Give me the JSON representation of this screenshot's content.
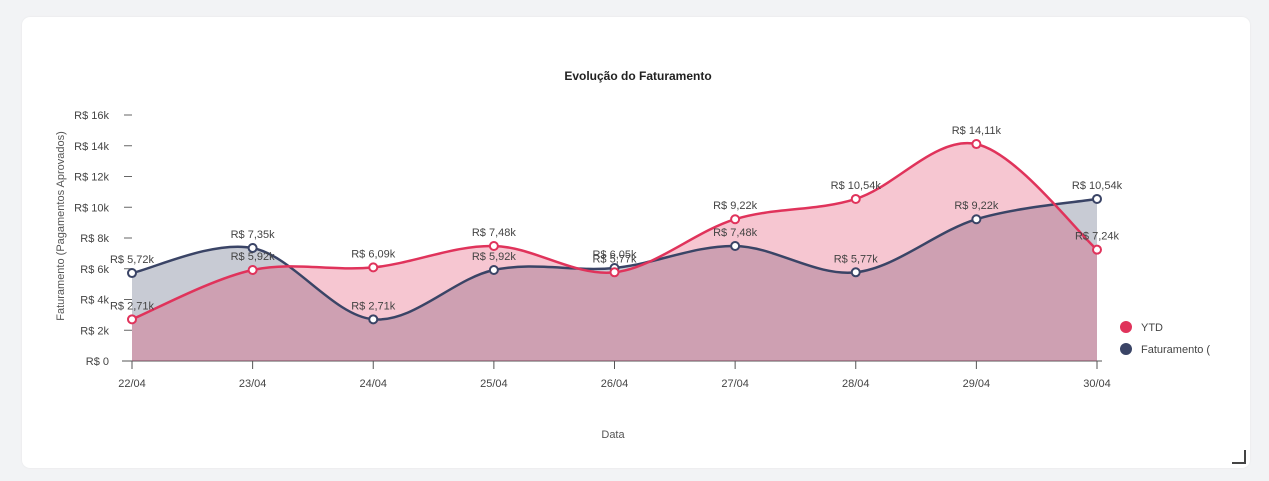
{
  "chart_data": {
    "type": "area",
    "title": "Evolução do Faturamento",
    "xlabel": "Data",
    "ylabel": "Faturamento (Pagamentos Aprovados)",
    "categories": [
      "22/04",
      "23/04",
      "24/04",
      "25/04",
      "26/04",
      "27/04",
      "28/04",
      "29/04",
      "30/04"
    ],
    "ylim": [
      0,
      16000
    ],
    "yticks": [
      {
        "value": 0,
        "label": "R$ 0"
      },
      {
        "value": 2000,
        "label": "R$ 2k"
      },
      {
        "value": 4000,
        "label": "R$ 4k"
      },
      {
        "value": 6000,
        "label": "R$ 6k"
      },
      {
        "value": 8000,
        "label": "R$ 8k"
      },
      {
        "value": 10000,
        "label": "R$ 10k"
      },
      {
        "value": 12000,
        "label": "R$ 12k"
      },
      {
        "value": 14000,
        "label": "R$ 14k"
      },
      {
        "value": 16000,
        "label": "R$ 16k"
      }
    ],
    "series": [
      {
        "name": "Faturamento (",
        "color": "#3a4466",
        "fill": "#3a4466",
        "values": [
          5720,
          7350,
          2710,
          5920,
          6050,
          7480,
          5770,
          9220,
          10540
        ],
        "labels": [
          "R$ 5,72k",
          "R$ 7,35k",
          "R$ 2,71k",
          "R$ 5,92k",
          "R$ 6,05k",
          "R$ 7,48k",
          "R$ 5,77k",
          "R$ 9,22k",
          "R$ 10,54k"
        ]
      },
      {
        "name": "YTD",
        "color": "#e0335b",
        "fill": "#e0335b",
        "values": [
          2710,
          5920,
          6090,
          7480,
          5770,
          9220,
          10540,
          14110,
          7240
        ],
        "labels": [
          "R$ 2,71k",
          "R$ 5,92k",
          "R$ 6,09k",
          "R$ 7,48k",
          "R$ 5,77k",
          "R$ 9,22k",
          "R$ 10,54k",
          "R$ 14,11k",
          "R$ 7,24k"
        ]
      }
    ],
    "legend": [
      {
        "name": "YTD",
        "color": "#e0335b"
      },
      {
        "name": "Faturamento (",
        "color": "#3a4466"
      }
    ],
    "legend_position": "right",
    "grid": false
  }
}
